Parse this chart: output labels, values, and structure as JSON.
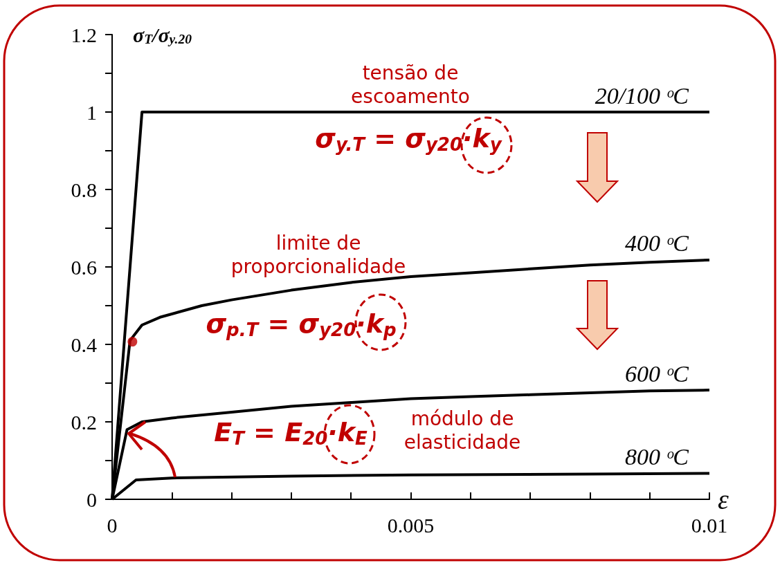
{
  "chart_data": {
    "type": "line",
    "xlabel": "ε",
    "ylabel": "σ$_{T}$/σ$_{y.20}$",
    "xlim": [
      0,
      0.01
    ],
    "xticks": [
      0,
      {
        "value": 0.001,
        "label": null
      },
      {
        "value": 0.002,
        "label": null
      },
      {
        "value": 0.003,
        "label": null
      },
      {
        "value": 0.004,
        "label": null
      },
      0.005,
      {
        "value": 0.006,
        "label": null
      },
      {
        "value": 0.007,
        "label": null
      },
      {
        "value": 0.008,
        "label": null
      },
      {
        "value": 0.009,
        "label": null
      },
      0.01
    ],
    "ylim": [
      0,
      1.2
    ],
    "yticks": [
      0,
      {
        "value": 0.1,
        "label": null
      },
      0.2,
      {
        "value": 0.3,
        "label": null
      },
      0.4,
      {
        "value": 0.5,
        "label": null
      },
      0.6,
      {
        "value": 0.7,
        "label": null
      },
      0.8,
      {
        "value": 0.9,
        "label": null
      },
      1,
      {
        "value": 1.1,
        "label": null
      },
      1.2
    ],
    "grid": false,
    "legend": false,
    "marker": "none",
    "series": [
      {
        "name": "20/100 ᵒC",
        "color": "#000000",
        "x": [
          0,
          0.0005,
          0.01
        ],
        "values": [
          0,
          1,
          1
        ]
      },
      {
        "name": "400 ᵒC",
        "color": "#000000",
        "x": [
          0,
          0.0003,
          0.0005,
          0.0008,
          0.0015,
          0.002,
          0.003,
          0.004,
          0.005,
          0.006,
          0.007,
          0.008,
          0.009,
          0.01
        ],
        "values": [
          0,
          0.41,
          0.45,
          0.47,
          0.5,
          0.515,
          0.54,
          0.56,
          0.575,
          0.585,
          0.595,
          0.605,
          0.612,
          0.618
        ]
      },
      {
        "name": "600 ᵒC",
        "color": "#000000",
        "x": [
          0,
          0.00025,
          0.0005,
          0.001,
          0.002,
          0.003,
          0.004,
          0.005,
          0.006,
          0.007,
          0.008,
          0.009,
          0.01
        ],
        "values": [
          0,
          0.18,
          0.2,
          0.21,
          0.225,
          0.24,
          0.25,
          0.26,
          0.265,
          0.27,
          0.275,
          0.28,
          0.282
        ]
      },
      {
        "name": "800 ᵒC",
        "color": "#000000",
        "x": [
          0,
          0.0004,
          0.001,
          0.003,
          0.005,
          0.008,
          0.01
        ],
        "values": [
          0,
          0.05,
          0.055,
          0.06,
          0.063,
          0.065,
          0.067
        ]
      },
      {
        "type": "scatter",
        "marker": "circle",
        "color": "#c00000",
        "x": [
          0.00034
        ],
        "values": [
          0.407
        ]
      }
    ],
    "annotations": [
      "tensão de\nescoamento",
      "σ$_{y.T}$ = σ$_{y20}$·k$_{y}$",
      "limite de\nproporcionalidade",
      "σ$_{p.T}$ = σ$_{y20}$·k$_{p}$",
      "E$_{T}$ = E$_{20}$·k$_{E}$",
      "módulo de\nelasticidade"
    ]
  }
}
